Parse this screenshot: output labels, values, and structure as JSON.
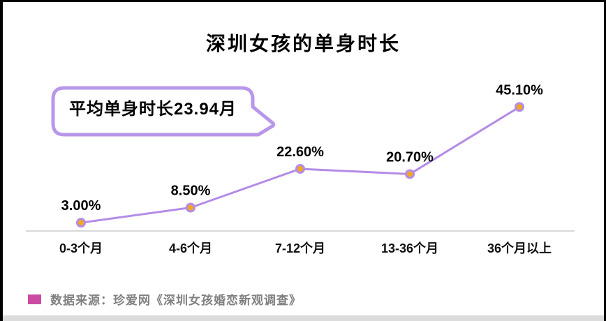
{
  "callout": {
    "text": "平均单身时长23.94月"
  },
  "chart_data": {
    "type": "line",
    "title": "深圳女孩的单身时长",
    "categories": [
      "0-3个月",
      "4-6个月",
      "7-12个月",
      "13-36个月",
      "36个月以上"
    ],
    "values": [
      3.0,
      8.5,
      22.6,
      20.7,
      45.1
    ],
    "value_labels": [
      "3.00%",
      "8.50%",
      "22.60%",
      "20.70%",
      "45.10%"
    ],
    "xlabel": "",
    "ylabel": "",
    "ylim": [
      0,
      50
    ],
    "grid": false,
    "legend": false,
    "annotation": "平均单身时长23.94月",
    "colors": {
      "line": "#b38ce6",
      "marker_fill": "#f2a71d",
      "marker_ring": "#b38ce6",
      "axis": "#d9d9d9",
      "label_text": "#000000",
      "bubble_border": "#b897ea"
    }
  },
  "footer": {
    "legend_color": "#cb4ba3",
    "source_text": "数据来源：珍爱网《深圳女孩婚恋新观调查》"
  }
}
